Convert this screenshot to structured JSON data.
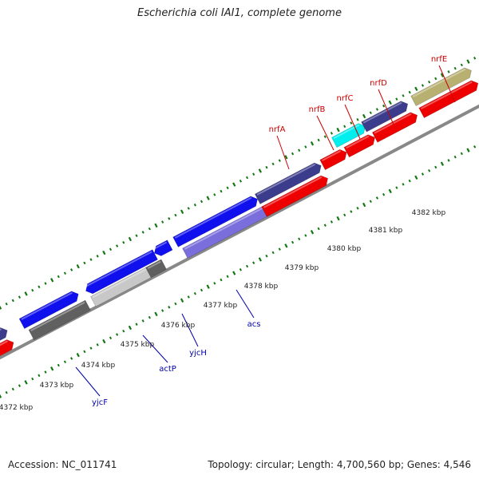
{
  "title": "Escherichia coli IAI1, complete genome",
  "footer": {
    "accession": "Accession: NC_011741",
    "stats": "Topology: circular; Length: 4,700,560 bp; Genes: 4,546"
  },
  "colors": {
    "red": "#ee0000",
    "blue": "#1010ee",
    "navy": "#3c3c8c",
    "cyan": "#00eeee",
    "olive": "#b8b070",
    "gray": "#909090",
    "darkgray": "#606060",
    "lightgray": "#c8c8c8",
    "lavender": "#7a6edc",
    "tick": "#117711",
    "labelRed": "#cc0000",
    "labelBlue": "#0000aa"
  },
  "kbp_labels": [
    "4372 kbp",
    "4373 kbp",
    "4374 kbp",
    "4375 kbp",
    "4376 kbp",
    "4377 kbp",
    "4378 kbp",
    "4379 kbp",
    "4380 kbp",
    "4381 kbp",
    "4382 kbp"
  ],
  "genes": [
    {
      "name": "nrfA",
      "color": "red"
    },
    {
      "name": "nrfB",
      "color": "red"
    },
    {
      "name": "nrfC",
      "color": "red"
    },
    {
      "name": "nrfD",
      "color": "red"
    },
    {
      "name": "nrfE",
      "color": "red"
    },
    {
      "name": "yjcF",
      "color": "blue"
    },
    {
      "name": "actP",
      "color": "blue"
    },
    {
      "name": "yjcH",
      "color": "blue"
    },
    {
      "name": "acs",
      "color": "blue"
    }
  ]
}
